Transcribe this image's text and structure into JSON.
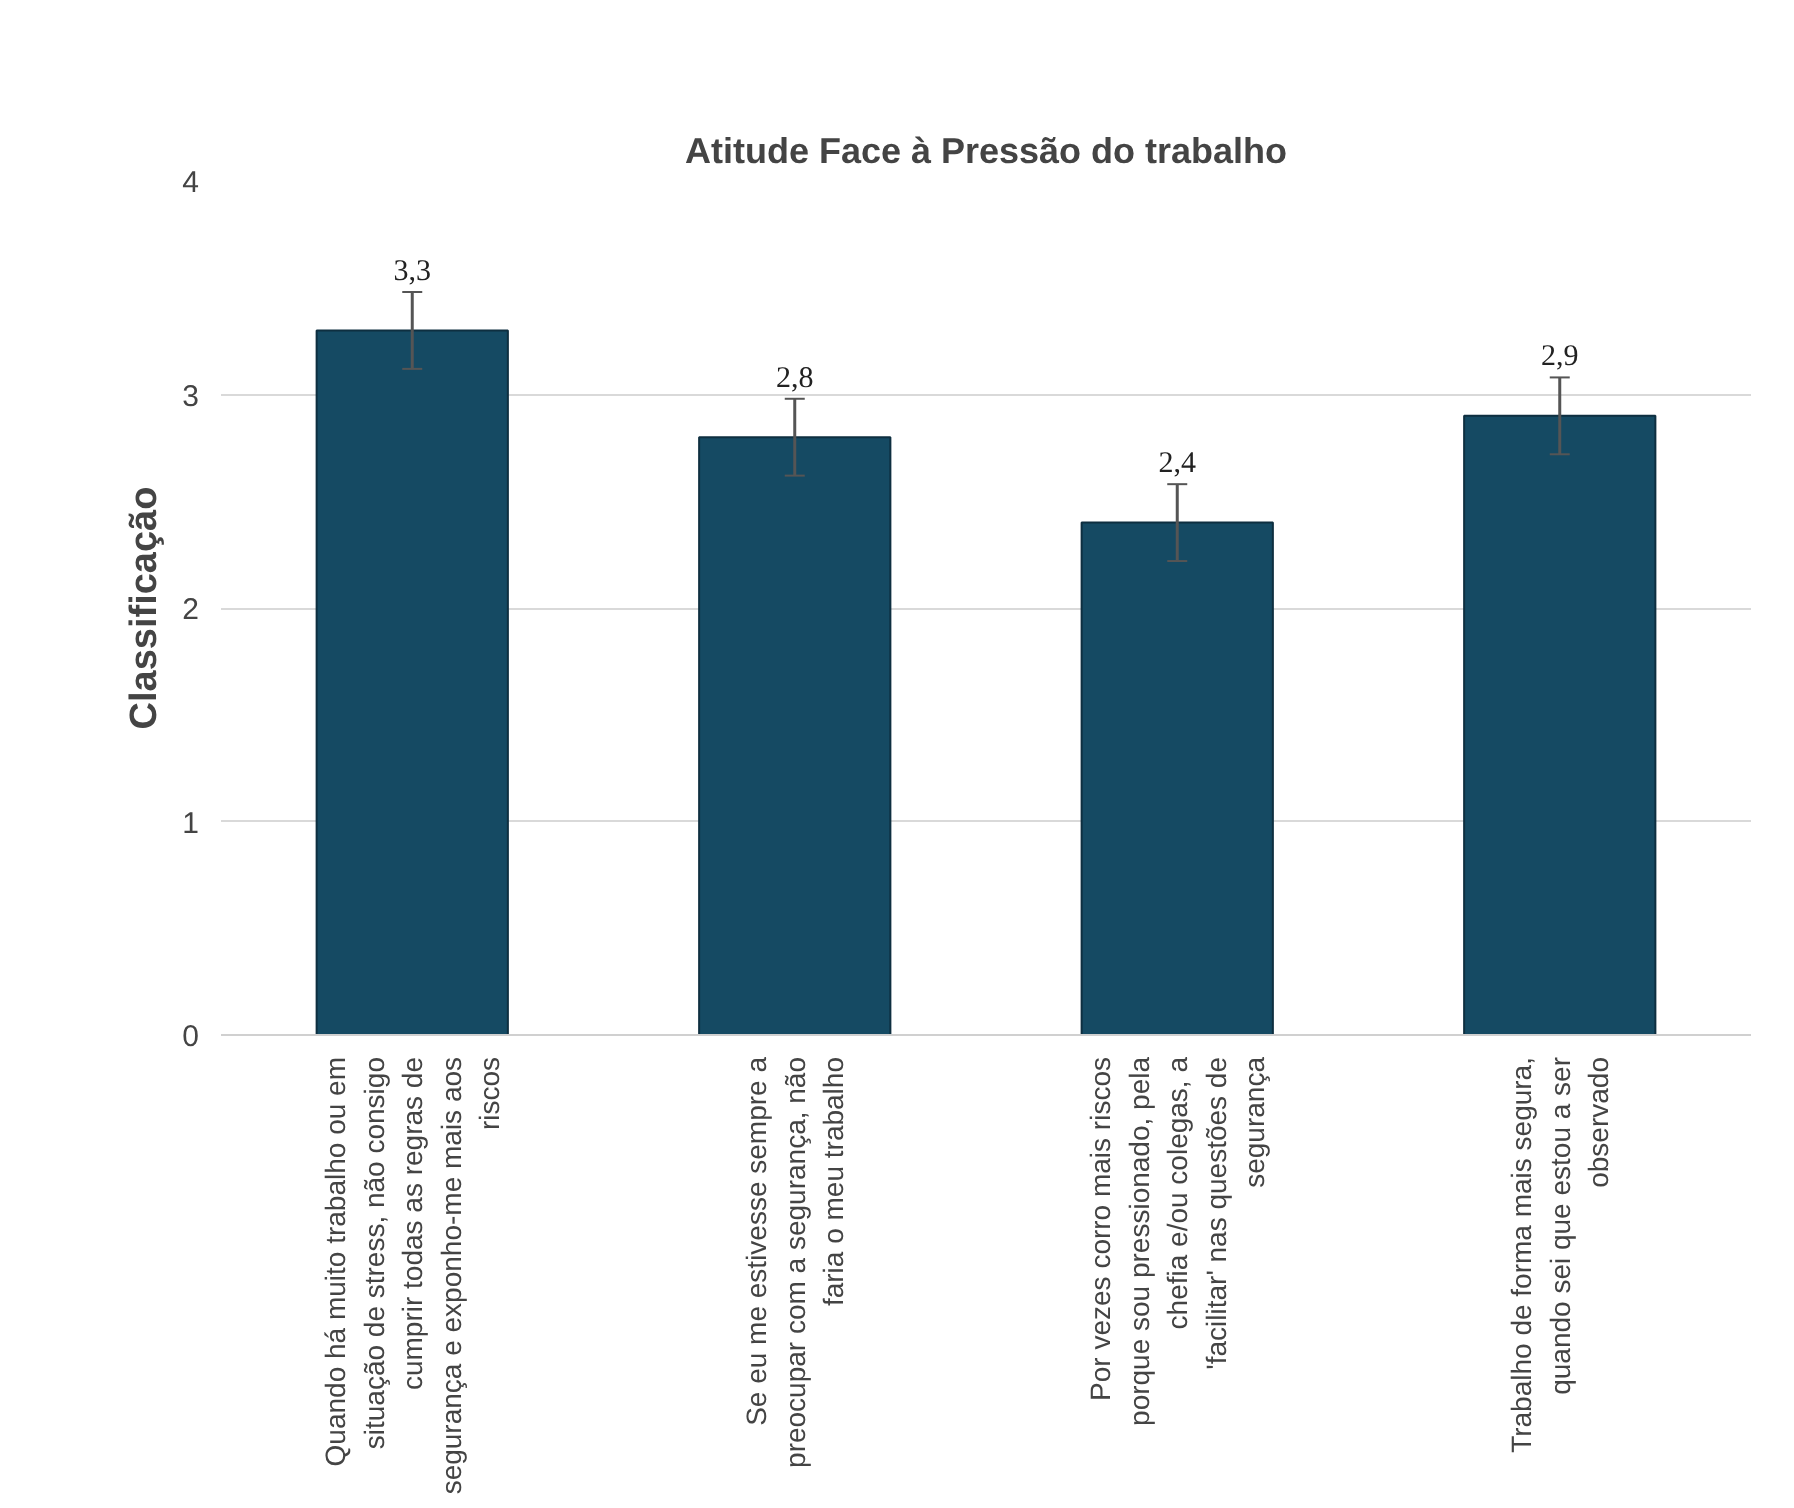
{
  "chart_data": {
    "type": "bar",
    "title": "Atitude Face à Pressão do trabalho",
    "ylabel": "Classificação",
    "categories": [
      "Quando há muito trabalho ou em situação de stress, não consigo cumprir todas as regras de segurança e exponho-me mais aos riscos",
      "Se eu me estivesse sempre a preocupar com a segurança, não faria o meu trabalho",
      "Por vezes corro mais riscos porque sou pressionado, pela chefia e/ou colegas, a 'facilitar' nas questões de segurança",
      "Trabalho de forma mais segura, quando sei que estou a ser observado"
    ],
    "values": [
      3.3,
      2.8,
      2.4,
      2.9
    ],
    "color": "#154a63",
    "errors": [
      0.18,
      0.18,
      0.18,
      0.18
    ],
    "value_labels": [
      "3,3",
      "2,8",
      "2,4",
      "2,9"
    ],
    "ylim": [
      0,
      4
    ],
    "yticks": [
      0,
      1,
      2,
      3,
      4
    ],
    "grid": "y"
  }
}
